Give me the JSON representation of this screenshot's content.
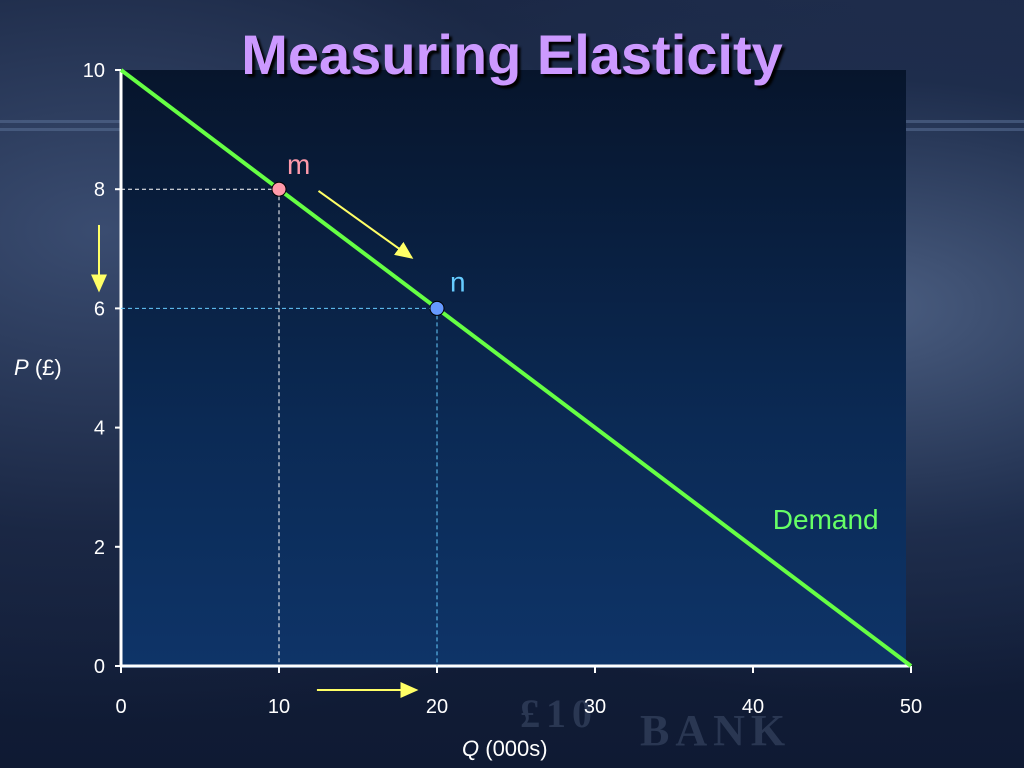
{
  "title": "Measuring Elasticity",
  "colors": {
    "title": "#cc99ff",
    "demand_line": "#66ff44",
    "point_m": "#ff99aa",
    "point_n": "#6699ff",
    "guide_m": "#ffffff",
    "guide_n": "#66ccff",
    "arrow": "#ffff66",
    "label_m": "#ff99aa",
    "label_n": "#66ccff"
  },
  "chart_data": {
    "type": "line",
    "title": "Measuring Elasticity",
    "xlabel_var": "Q",
    "xlabel_unit": "(000s)",
    "ylabel_var": "P",
    "ylabel_unit": "(£)",
    "xlim": [
      0,
      50
    ],
    "ylim": [
      0,
      10
    ],
    "xticks": [
      0,
      10,
      20,
      30,
      40,
      50
    ],
    "yticks": [
      0,
      2,
      4,
      6,
      8,
      10
    ],
    "grid": false,
    "series": [
      {
        "name": "Demand",
        "x": [
          0,
          50
        ],
        "y": [
          10,
          0
        ]
      }
    ],
    "points": [
      {
        "label": "m",
        "x": 10,
        "y": 8
      },
      {
        "label": "n",
        "x": 20,
        "y": 6
      }
    ]
  }
}
